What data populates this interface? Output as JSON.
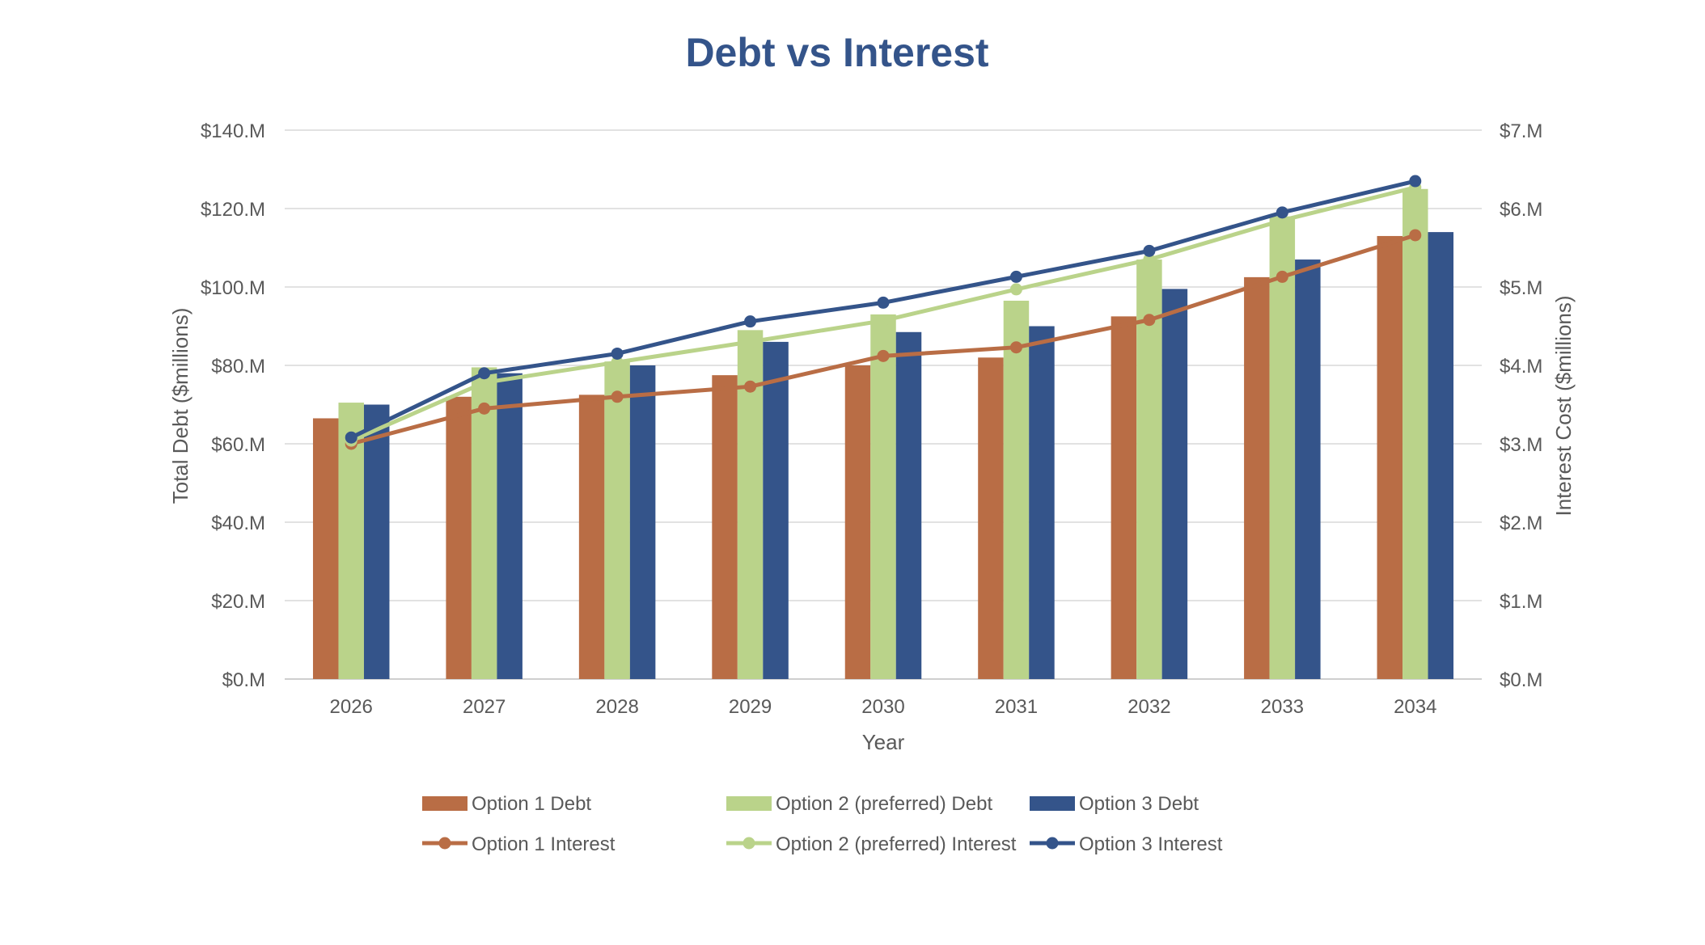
{
  "chart_data": {
    "type": "bar",
    "title": "Debt vs Interest",
    "xlabel": "Year",
    "ylabel": "Total Debt ($millions)",
    "y2label": "Interest Cost ($millions)",
    "categories": [
      "2026",
      "2027",
      "2028",
      "2029",
      "2030",
      "2031",
      "2032",
      "2033",
      "2034"
    ],
    "ylim": [
      0,
      140
    ],
    "y2lim": [
      0,
      7
    ],
    "yticks": [
      "$0.M",
      "$20.M",
      "$40.M",
      "$60.M",
      "$80.M",
      "$100.M",
      "$120.M",
      "$140.M"
    ],
    "y2ticks": [
      "$0.M",
      "$1.M",
      "$2.M",
      "$3.M",
      "$4.M",
      "$5.M",
      "$6.M",
      "$7.M"
    ],
    "grid": true,
    "legend_position": "bottom",
    "series": [
      {
        "name": "Option 1 Debt",
        "kind": "bar",
        "axis": "left",
        "color": "#B96D45",
        "values": [
          66.5,
          72,
          72.5,
          77.5,
          80,
          82,
          92.5,
          102.5,
          113
        ]
      },
      {
        "name": "Option 2 (preferred) Debt",
        "kind": "bar",
        "axis": "left",
        "color": "#BAD38A",
        "values": [
          70.5,
          79.5,
          81,
          89,
          93,
          96.5,
          107,
          118,
          125
        ]
      },
      {
        "name": "Option 3 Debt",
        "kind": "bar",
        "axis": "left",
        "color": "#34548A",
        "values": [
          70,
          78,
          80,
          86,
          88.5,
          90,
          99.5,
          107,
          114
        ]
      },
      {
        "name": "Option 1 Interest",
        "kind": "line",
        "axis": "right",
        "color": "#B96D45",
        "values": [
          3.0,
          3.45,
          3.6,
          3.73,
          4.12,
          4.23,
          4.58,
          5.13,
          5.66
        ]
      },
      {
        "name": "Option 2 (preferred) Interest",
        "kind": "line",
        "axis": "right",
        "color": "#BAD38A",
        "values": [
          3.04,
          3.78,
          4.04,
          4.3,
          4.57,
          4.97,
          5.35,
          5.85,
          6.27
        ]
      },
      {
        "name": "Option 3 Interest",
        "kind": "line",
        "axis": "right",
        "color": "#34548A",
        "values": [
          3.08,
          3.9,
          4.15,
          4.56,
          4.8,
          5.13,
          5.46,
          5.95,
          6.35
        ]
      }
    ]
  },
  "colors": {
    "title": "#34548A",
    "axis_text": "#595959",
    "gridline": "#D9D9D9",
    "baseline": "#BFBFBF"
  }
}
